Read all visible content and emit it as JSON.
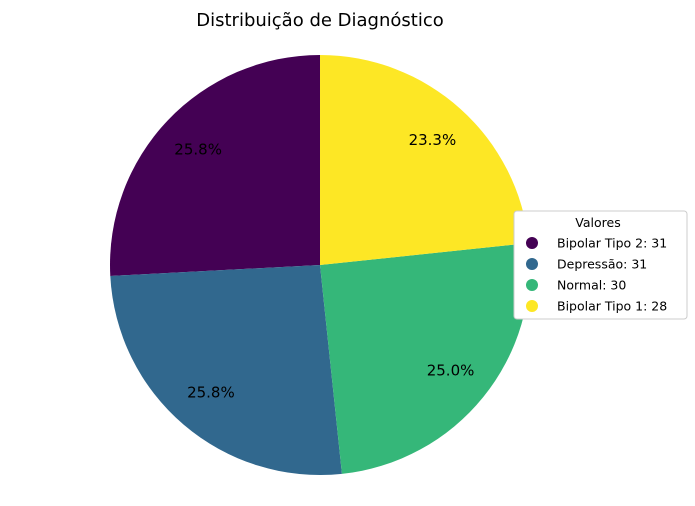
{
  "chart_data": {
    "type": "pie",
    "title": "Distribuição de Diagnóstico",
    "legend_title": "Valores",
    "legend_position": "right",
    "start_angle_deg": 90,
    "direction": "counterclockwise",
    "slices": [
      {
        "label": "Bipolar Tipo 2",
        "value": 31,
        "pct_label": "25.8%",
        "legend_label": "Bipolar Tipo 2: 31",
        "color": "#440154"
      },
      {
        "label": "Depressão",
        "value": 31,
        "pct_label": "25.8%",
        "legend_label": "Depressão: 31",
        "color": "#31688e"
      },
      {
        "label": "Normal",
        "value": 30,
        "pct_label": "25.0%",
        "legend_label": "Normal: 30",
        "color": "#35b779"
      },
      {
        "label": "Bipolar Tipo 1",
        "value": 28,
        "pct_label": "23.3%",
        "legend_label": "Bipolar Tipo 1: 28",
        "color": "#fde725"
      }
    ]
  }
}
